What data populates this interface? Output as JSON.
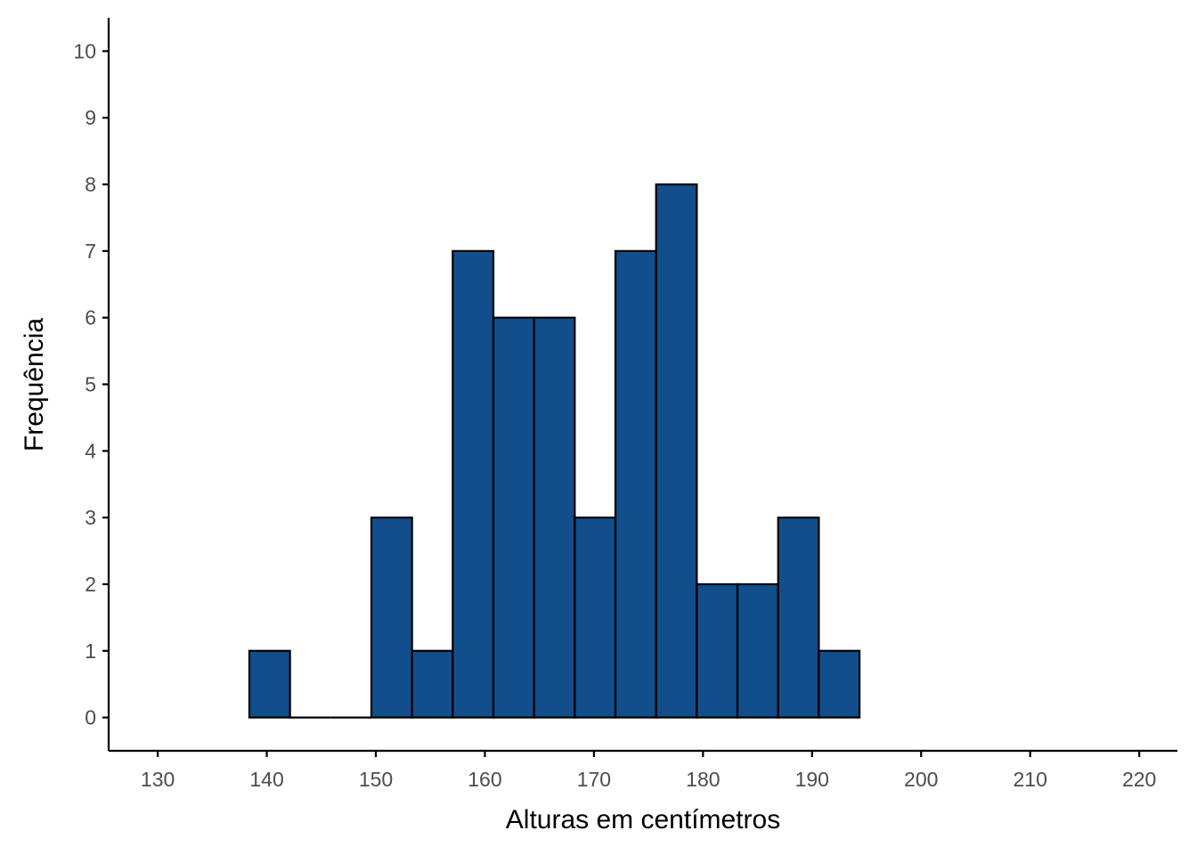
{
  "chart_data": {
    "type": "bar",
    "subtype": "histogram",
    "title": "",
    "xlabel": "Alturas em centímetros",
    "ylabel": "Frequência",
    "bin_width": 3.73,
    "bins": [
      {
        "x_start": 138.4,
        "x_end": 142.13,
        "count": 1
      },
      {
        "x_start": 142.13,
        "x_end": 145.86,
        "count": 0
      },
      {
        "x_start": 145.86,
        "x_end": 149.59,
        "count": 0
      },
      {
        "x_start": 149.59,
        "x_end": 153.32,
        "count": 3
      },
      {
        "x_start": 153.32,
        "x_end": 157.05,
        "count": 1
      },
      {
        "x_start": 157.05,
        "x_end": 160.78,
        "count": 7
      },
      {
        "x_start": 160.78,
        "x_end": 164.51,
        "count": 6
      },
      {
        "x_start": 164.51,
        "x_end": 168.24,
        "count": 6
      },
      {
        "x_start": 168.24,
        "x_end": 171.97,
        "count": 3
      },
      {
        "x_start": 171.97,
        "x_end": 175.7,
        "count": 7
      },
      {
        "x_start": 175.7,
        "x_end": 179.43,
        "count": 8
      },
      {
        "x_start": 179.43,
        "x_end": 183.16,
        "count": 2
      },
      {
        "x_start": 183.16,
        "x_end": 186.89,
        "count": 2
      },
      {
        "x_start": 186.89,
        "x_end": 190.62,
        "count": 3
      },
      {
        "x_start": 190.62,
        "x_end": 194.35,
        "count": 1
      }
    ],
    "xlim": [
      125.5,
      223.5
    ],
    "ylim": [
      -0.5,
      10.5
    ],
    "x_ticks": [
      "130",
      "140",
      "150",
      "160",
      "170",
      "180",
      "190",
      "200",
      "210",
      "220"
    ],
    "y_ticks": [
      "0",
      "1",
      "2",
      "3",
      "4",
      "5",
      "6",
      "7",
      "8",
      "9",
      "10"
    ],
    "grid": false,
    "legend": "none",
    "colors": {
      "bar_fill": "#114e8b",
      "bar_stroke": "#000000",
      "axis": "#000000",
      "tick_label": "#4d4d4d",
      "axis_title": "#000000"
    }
  }
}
